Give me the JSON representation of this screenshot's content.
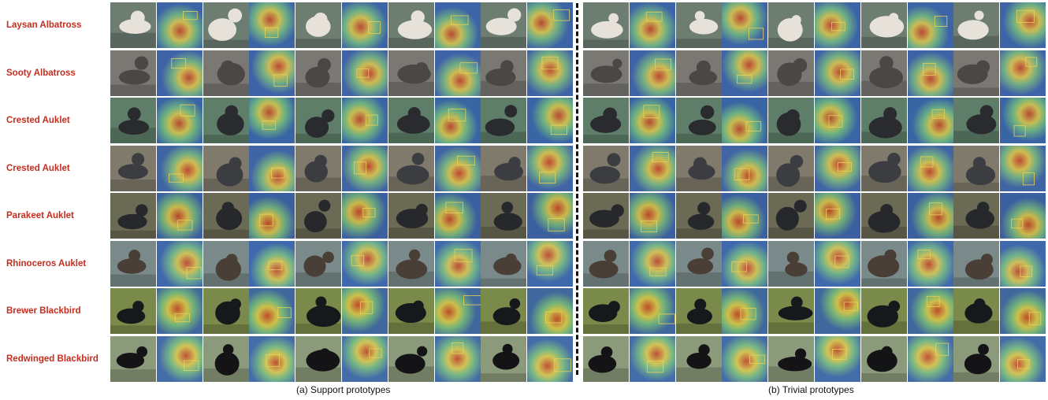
{
  "rows": [
    {
      "label": "Laysan Albatross",
      "bg": "#6d7d72",
      "bird": "#e6e2da"
    },
    {
      "label": "Sooty Albatross",
      "bg": "#7a7873",
      "bird": "#4a4744"
    },
    {
      "label": "Crested Auklet",
      "bg": "#5e7e6a",
      "bird": "#2a2b2f"
    },
    {
      "label": "Crested Auklet",
      "bg": "#7f7a6c",
      "bird": "#3c3d40"
    },
    {
      "label": "Parakeet Auklet",
      "bg": "#6b6a55",
      "bird": "#26282c"
    },
    {
      "label": "Rhinoceros Auklet",
      "bg": "#7a8a8a",
      "bird": "#4a3f36"
    },
    {
      "label": "Brewer Blackbird",
      "bg": "#7a8a4a",
      "bird": "#17181b"
    },
    {
      "label": "Redwinged Blackbird",
      "bg": "#8a9a7a",
      "bird": "#141416"
    }
  ],
  "panels": [
    {
      "caption": "(a) Support prototypes"
    },
    {
      "caption": "(b) Trivial prototypes"
    }
  ],
  "colors": {
    "label": "#c62d1f",
    "heat_hot": "#d23a20",
    "heat_warm": "#e8d24a",
    "heat_cool": "#2c5cb8"
  }
}
